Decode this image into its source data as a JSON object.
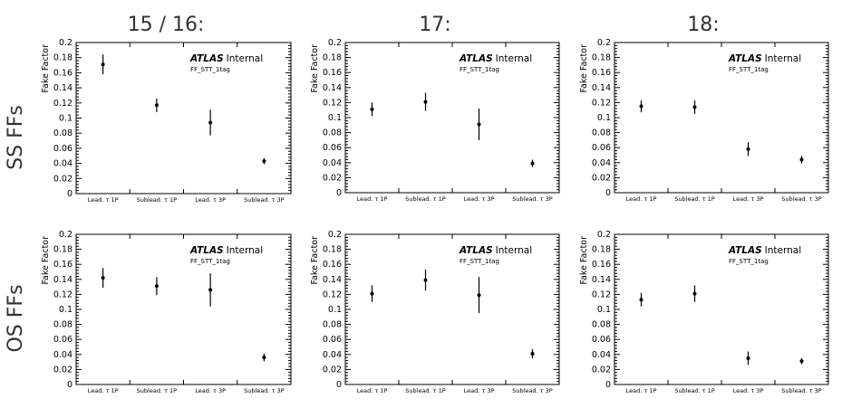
{
  "column_titles": [
    "15 / 16:",
    "17:",
    "18:"
  ],
  "row_titles": [
    "SS FFs",
    "OS FFs"
  ],
  "chart_data": [
    {
      "type": "scatter",
      "row": "SS FFs",
      "column": "15 / 16:",
      "categories": [
        "Lead. τ 1P",
        "Sublead. τ 1P",
        "Lead. τ 3P",
        "Sublead. τ 3P"
      ],
      "values": [
        0.171,
        0.117,
        0.094,
        0.043
      ],
      "errors": [
        0.013,
        0.009,
        0.017,
        0.004
      ],
      "xlabel": "",
      "ylabel": "Fake Factor",
      "ylim": [
        0,
        0.2
      ],
      "yticks": [
        "0",
        "0.02",
        "0.04",
        "0.06",
        "0.08",
        "0.1",
        "0.12",
        "0.14",
        "0.16",
        "0.18",
        "0.2"
      ],
      "label_main": "ATLAS",
      "label_sub": "Internal",
      "annotation": "FF_STT_1tag",
      "grid": false
    },
    {
      "type": "scatter",
      "row": "SS FFs",
      "column": "17:",
      "categories": [
        "Lead. τ 1P",
        "Sublead. τ 1P",
        "Lead. τ 3P",
        "Sublead. τ 3P"
      ],
      "values": [
        0.111,
        0.121,
        0.091,
        0.039
      ],
      "errors": [
        0.009,
        0.012,
        0.021,
        0.005
      ],
      "xlabel": "",
      "ylabel": "Fake Factor",
      "ylim": [
        0,
        0.2
      ],
      "yticks": [
        "0",
        "0.02",
        "0.04",
        "0.06",
        "0.08",
        "0.1",
        "0.12",
        "0.14",
        "0.16",
        "0.18",
        "0.2"
      ],
      "label_main": "ATLAS",
      "label_sub": "Internal",
      "annotation": "FF_STT_1tag",
      "grid": false
    },
    {
      "type": "scatter",
      "row": "SS FFs",
      "column": "18:",
      "categories": [
        "Lead. τ 1P",
        "Sublead. τ 1P",
        "Lead. τ 3P",
        "Sublead. τ 3P"
      ],
      "values": [
        0.115,
        0.114,
        0.058,
        0.044
      ],
      "errors": [
        0.008,
        0.009,
        0.009,
        0.005
      ],
      "xlabel": "",
      "ylabel": "Fake Factor",
      "ylim": [
        0,
        0.2
      ],
      "yticks": [
        "0",
        "0.02",
        "0.04",
        "0.06",
        "0.08",
        "0.1",
        "0.12",
        "0.14",
        "0.16",
        "0.18",
        "0.2"
      ],
      "label_main": "ATLAS",
      "label_sub": "Internal",
      "annotation": "FF_STT_1tag",
      "grid": false
    },
    {
      "type": "scatter",
      "row": "OS FFs",
      "column": "15 / 16:",
      "categories": [
        "Lead. τ 1P",
        "Sublead. τ 1P",
        "Lead. τ 3P",
        "Sublead. τ 3P"
      ],
      "values": [
        0.142,
        0.131,
        0.126,
        0.036
      ],
      "errors": [
        0.013,
        0.012,
        0.022,
        0.005
      ],
      "xlabel": "",
      "ylabel": "Fake Factor",
      "ylim": [
        0,
        0.2
      ],
      "yticks": [
        "0",
        "0.02",
        "0.04",
        "0.06",
        "0.08",
        "0.1",
        "0.12",
        "0.14",
        "0.16",
        "0.18",
        "0.2"
      ],
      "label_main": "ATLAS",
      "label_sub": "Internal",
      "annotation": "FF_STT_1tag",
      "grid": false
    },
    {
      "type": "scatter",
      "row": "OS FFs",
      "column": "17:",
      "categories": [
        "Lead. τ 1P",
        "Sublead. τ 1P",
        "Lead. τ 3P",
        "Sublead. τ 3P"
      ],
      "values": [
        0.121,
        0.139,
        0.119,
        0.041
      ],
      "errors": [
        0.011,
        0.014,
        0.024,
        0.006
      ],
      "xlabel": "",
      "ylabel": "Fake Factor",
      "ylim": [
        0,
        0.2
      ],
      "yticks": [
        "0",
        "0.02",
        "0.04",
        "0.06",
        "0.08",
        "0.1",
        "0.12",
        "0.14",
        "0.16",
        "0.18",
        "0.2"
      ],
      "label_main": "ATLAS",
      "label_sub": "Internal",
      "annotation": "FF_STT_1tag",
      "grid": false
    },
    {
      "type": "scatter",
      "row": "OS FFs",
      "column": "18:",
      "categories": [
        "Lead. τ 1P",
        "Sublead. τ 1P",
        "Lead. τ 3P",
        "Sublead. τ 3P"
      ],
      "values": [
        0.113,
        0.121,
        0.035,
        0.031
      ],
      "errors": [
        0.009,
        0.011,
        0.009,
        0.004
      ],
      "xlabel": "",
      "ylabel": "Fake Factor",
      "ylim": [
        0,
        0.2
      ],
      "yticks": [
        "0",
        "0.02",
        "0.04",
        "0.06",
        "0.08",
        "0.1",
        "0.12",
        "0.14",
        "0.16",
        "0.18",
        "0.2"
      ],
      "label_main": "ATLAS",
      "label_sub": "Internal",
      "annotation": "FF_STT_1tag",
      "grid": false
    }
  ]
}
